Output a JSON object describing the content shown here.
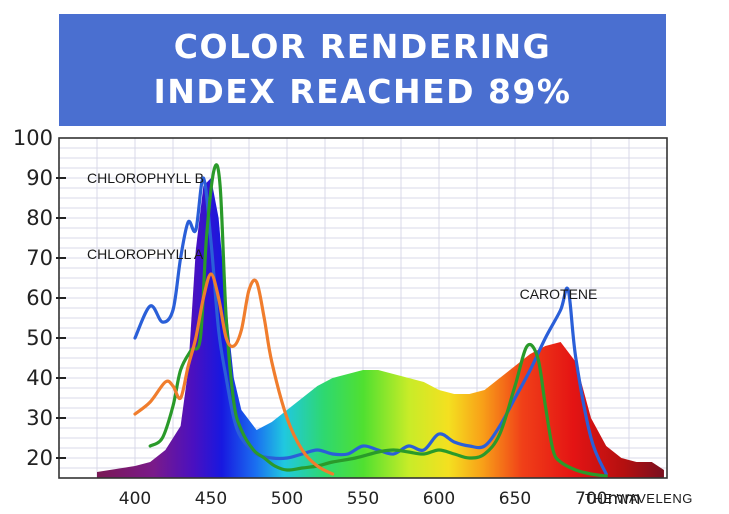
{
  "title_lines": [
    "COLOR RENDERING",
    "INDEX REACHED 89%"
  ],
  "chart_data": {
    "type": "line",
    "title": "COLOR RENDERING INDEX REACHED 89%",
    "xlabel": "THE WAVELENG",
    "ylabel": "",
    "xlim": [
      350,
      750
    ],
    "ylim": [
      15,
      100
    ],
    "grid": true,
    "x_ticks": [
      400,
      450,
      500,
      550,
      600,
      650,
      700
    ],
    "x_tick_labels": [
      "400",
      "450",
      "500",
      "550",
      "600",
      "650",
      "700mm"
    ],
    "y_ticks": [
      20,
      30,
      40,
      50,
      60,
      70,
      80,
      90,
      100
    ],
    "y_tick_labels": [
      "20",
      "30",
      "40",
      "50",
      "60",
      "70",
      "80",
      "90",
      "100"
    ],
    "annotations": [
      {
        "text": "CHLOROPHYLL B",
        "x": 400,
        "y": 90
      },
      {
        "text": "CHLOROPHYLL A",
        "x": 400,
        "y": 71
      },
      {
        "text": "CAROTENE",
        "x": 655,
        "y": 61
      }
    ],
    "spectrum": {
      "name": "",
      "x": [
        375,
        400,
        410,
        420,
        430,
        435,
        440,
        445,
        450,
        455,
        460,
        465,
        470,
        480,
        490,
        500,
        510,
        520,
        530,
        540,
        550,
        560,
        570,
        580,
        590,
        600,
        610,
        620,
        630,
        640,
        650,
        660,
        670,
        680,
        690,
        700,
        710,
        720,
        730,
        740,
        748
      ],
      "y": [
        16.5,
        18,
        19,
        22,
        28,
        42,
        72,
        88,
        90,
        80,
        58,
        40,
        32,
        27,
        29,
        32,
        35,
        38,
        40,
        41,
        42,
        42,
        41,
        40,
        39,
        37,
        36,
        36,
        37,
        40,
        43,
        46,
        48,
        49,
        44,
        30,
        23,
        20,
        19,
        19,
        17
      ]
    },
    "series": [
      {
        "name": "",
        "color": "#2a5fd8",
        "x": [
          400,
          410,
          418,
          425,
          430,
          435,
          440,
          445,
          450,
          455,
          460,
          465,
          470,
          480,
          490,
          500,
          510,
          520,
          530,
          540,
          550,
          560,
          570,
          580,
          590,
          600,
          610,
          620,
          630,
          640,
          650,
          660,
          670,
          680,
          685,
          690,
          700,
          710
        ],
        "y": [
          50,
          58,
          54,
          57,
          70,
          79,
          77,
          90,
          74,
          52,
          40,
          30,
          25,
          21,
          20,
          20,
          21,
          22,
          21,
          21,
          23,
          22,
          21,
          23,
          22,
          26,
          24,
          23,
          23,
          28,
          35,
          42,
          50,
          57,
          62,
          45,
          25,
          16
        ]
      },
      {
        "name": "",
        "color": "#2a9a2a",
        "x": [
          410,
          418,
          425,
          430,
          437,
          443,
          447,
          452,
          456,
          460,
          465,
          470,
          478,
          485,
          492,
          500,
          510,
          520,
          530,
          545,
          560,
          570,
          580,
          590,
          600,
          610,
          620,
          630,
          640,
          650,
          658,
          665,
          670,
          675,
          680,
          690,
          700,
          710
        ],
        "y": [
          23,
          25,
          33,
          42,
          47,
          50,
          75,
          92,
          88,
          55,
          34,
          27,
          22,
          20,
          18,
          17,
          17.5,
          18,
          19,
          20,
          21.5,
          22,
          21.5,
          21,
          22,
          21,
          20,
          21,
          26,
          38,
          48,
          45,
          33,
          22,
          19,
          17,
          16,
          15.5
        ]
      },
      {
        "name": "",
        "color": "#f07d2d",
        "x": [
          400,
          410,
          420,
          425,
          430,
          435,
          440,
          445,
          450,
          455,
          460,
          465,
          470,
          475,
          480,
          485,
          490,
          500,
          510,
          520,
          530
        ],
        "y": [
          31,
          34,
          39,
          38,
          35,
          43,
          50,
          60,
          66,
          60,
          50,
          48,
          52,
          62,
          64,
          55,
          44,
          30,
          22,
          18,
          16
        ]
      }
    ]
  }
}
